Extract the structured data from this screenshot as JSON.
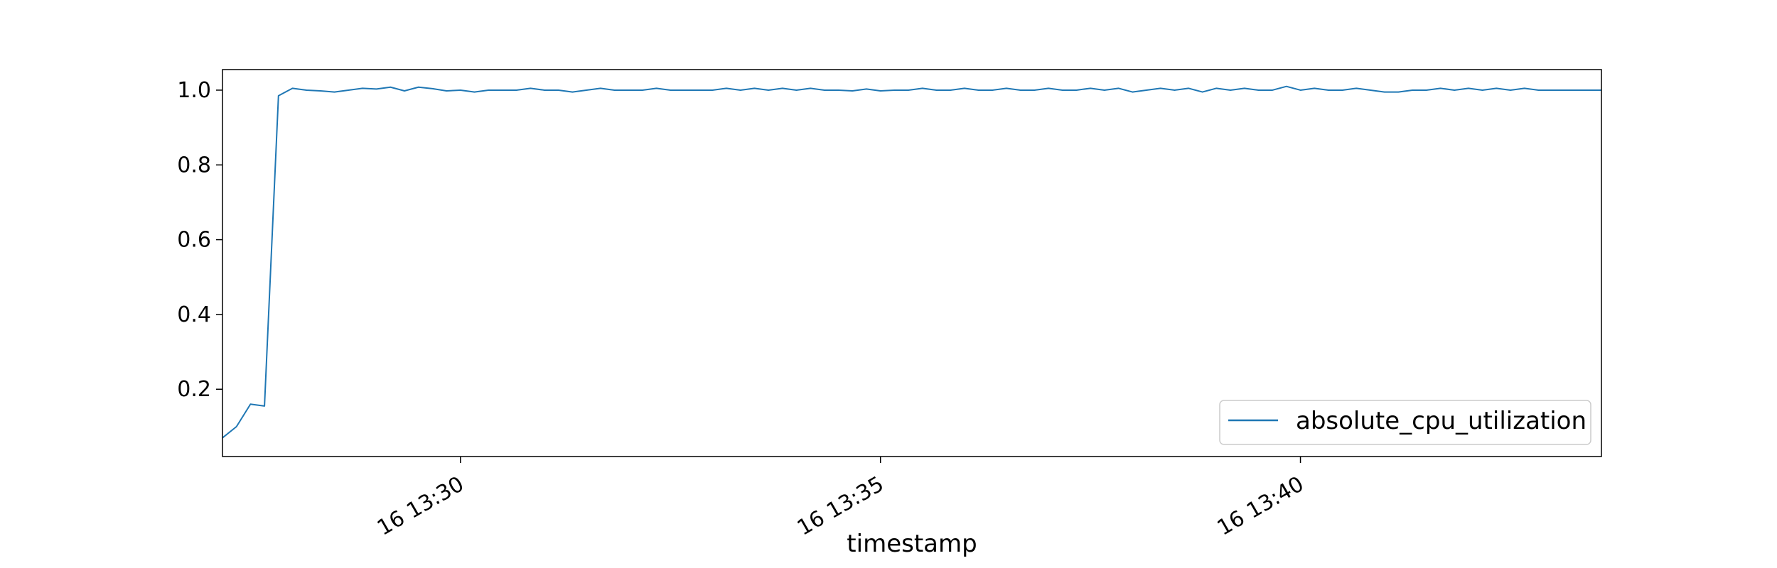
{
  "chart_data": {
    "type": "line",
    "title": "",
    "xlabel": "timestamp",
    "ylabel": "",
    "x_unit": "minutes",
    "xlim": [
      "16 13:27:10",
      "16 13:43:35"
    ],
    "ylim": [
      0.02,
      1.055
    ],
    "grid": false,
    "legend_position": "bottom-right",
    "x_ticks": [
      {
        "value": "16 13:30:00",
        "label": "16 13:30"
      },
      {
        "value": "16 13:35:00",
        "label": "16 13:35"
      },
      {
        "value": "16 13:40:00",
        "label": "16 13:40"
      }
    ],
    "y_ticks": [
      {
        "value": 0.2,
        "label": "0.2"
      },
      {
        "value": 0.4,
        "label": "0.4"
      },
      {
        "value": 0.6,
        "label": "0.6"
      },
      {
        "value": 0.8,
        "label": "0.8"
      },
      {
        "value": 1.0,
        "label": "1.0"
      }
    ],
    "series": [
      {
        "name": "absolute_cpu_utilization",
        "color": "#1f77b4",
        "x": [
          "16 13:27:10",
          "16 13:27:20",
          "16 13:27:30",
          "16 13:27:40",
          "16 13:27:50",
          "16 13:28:00",
          "16 13:28:10",
          "16 13:28:20",
          "16 13:28:30",
          "16 13:28:40",
          "16 13:28:50",
          "16 13:29:00",
          "16 13:29:10",
          "16 13:29:20",
          "16 13:29:30",
          "16 13:29:40",
          "16 13:29:50",
          "16 13:30:00",
          "16 13:30:10",
          "16 13:30:20",
          "16 13:30:30",
          "16 13:30:40",
          "16 13:30:50",
          "16 13:31:00",
          "16 13:31:10",
          "16 13:31:20",
          "16 13:31:30",
          "16 13:31:40",
          "16 13:31:50",
          "16 13:32:00",
          "16 13:32:10",
          "16 13:32:20",
          "16 13:32:30",
          "16 13:32:40",
          "16 13:32:50",
          "16 13:33:00",
          "16 13:33:10",
          "16 13:33:20",
          "16 13:33:30",
          "16 13:33:40",
          "16 13:33:50",
          "16 13:34:00",
          "16 13:34:10",
          "16 13:34:20",
          "16 13:34:30",
          "16 13:34:40",
          "16 13:34:50",
          "16 13:35:00",
          "16 13:35:10",
          "16 13:35:20",
          "16 13:35:30",
          "16 13:35:40",
          "16 13:35:50",
          "16 13:36:00",
          "16 13:36:10",
          "16 13:36:20",
          "16 13:36:30",
          "16 13:36:40",
          "16 13:36:50",
          "16 13:37:00",
          "16 13:37:10",
          "16 13:37:20",
          "16 13:37:30",
          "16 13:37:40",
          "16 13:37:50",
          "16 13:38:00",
          "16 13:38:10",
          "16 13:38:20",
          "16 13:38:30",
          "16 13:38:40",
          "16 13:38:50",
          "16 13:39:00",
          "16 13:39:10",
          "16 13:39:20",
          "16 13:39:30",
          "16 13:39:40",
          "16 13:39:50",
          "16 13:40:00",
          "16 13:40:10",
          "16 13:40:20",
          "16 13:40:30",
          "16 13:40:40",
          "16 13:40:50",
          "16 13:41:00",
          "16 13:41:10",
          "16 13:41:20",
          "16 13:41:30",
          "16 13:41:40",
          "16 13:41:50",
          "16 13:42:00",
          "16 13:42:10",
          "16 13:42:20",
          "16 13:42:30",
          "16 13:42:40",
          "16 13:42:50",
          "16 13:43:00",
          "16 13:43:10",
          "16 13:43:20",
          "16 13:43:30",
          "16 13:43:35"
        ],
        "y": [
          0.07,
          0.1,
          0.16,
          0.155,
          0.985,
          1.005,
          1.0,
          0.998,
          0.995,
          1.0,
          1.005,
          1.003,
          1.008,
          0.998,
          1.008,
          1.004,
          0.998,
          1.0,
          0.995,
          1.0,
          1.0,
          1.0,
          1.005,
          1.0,
          1.0,
          0.995,
          1.0,
          1.005,
          1.0,
          1.0,
          1.0,
          1.005,
          1.0,
          1.0,
          1.0,
          1.0,
          1.005,
          1.0,
          1.005,
          1.0,
          1.005,
          1.0,
          1.005,
          1.0,
          1.0,
          0.998,
          1.003,
          0.998,
          1.0,
          1.0,
          1.005,
          1.0,
          1.0,
          1.005,
          1.0,
          1.0,
          1.005,
          1.0,
          1.0,
          1.005,
          1.0,
          1.0,
          1.005,
          1.0,
          1.005,
          0.995,
          1.0,
          1.005,
          1.0,
          1.005,
          0.995,
          1.005,
          1.0,
          1.005,
          1.0,
          1.0,
          1.01,
          1.0,
          1.005,
          1.0,
          1.0,
          1.005,
          1.0,
          0.995,
          0.995,
          1.0,
          1.0,
          1.005,
          1.0,
          1.005,
          1.0,
          1.005,
          1.0,
          1.005,
          1.0,
          1.0,
          1.0,
          1.0,
          1.0,
          1.0
        ]
      }
    ]
  }
}
